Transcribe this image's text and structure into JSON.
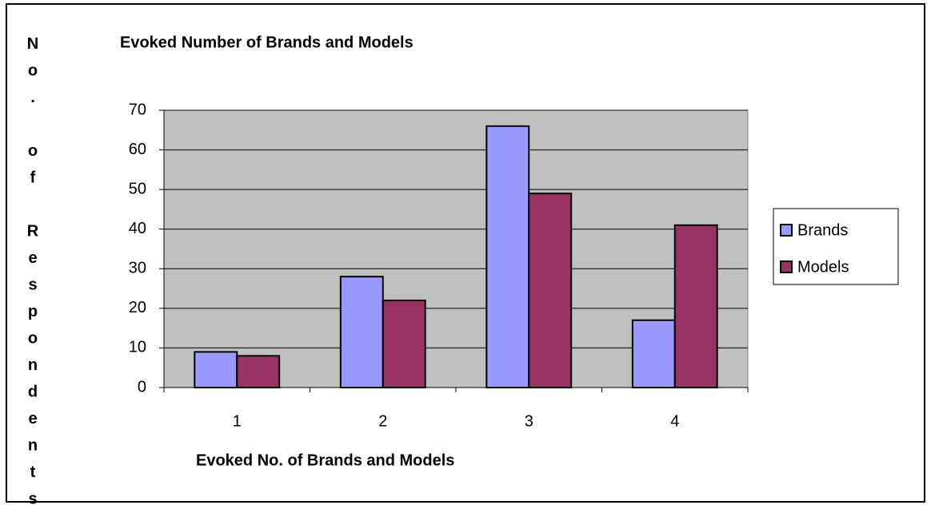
{
  "chart_data": {
    "type": "bar",
    "title": "Evoked Number of Brands and Models",
    "x_label": "Evoked No. of Brands and Models",
    "y_label": "No. of Respondents",
    "categories": [
      "1",
      "2",
      "3",
      "4"
    ],
    "series": [
      {
        "name": "Brands",
        "color": "#9999ff",
        "values": [
          9,
          28,
          66,
          17
        ]
      },
      {
        "name": "Models",
        "color": "#993366",
        "values": [
          8,
          22,
          49,
          41
        ]
      }
    ],
    "ylim": [
      0,
      70
    ],
    "yticks": [
      0,
      10,
      20,
      30,
      40,
      50,
      60,
      70
    ],
    "grid": true,
    "legend": "right",
    "plot_background": "#c0c0c0"
  }
}
